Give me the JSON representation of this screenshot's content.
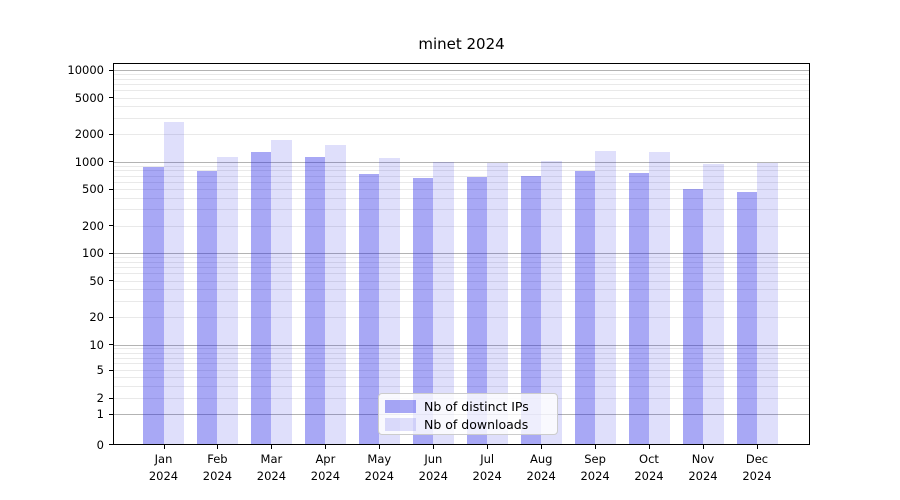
{
  "title": "minet 2024",
  "chart_data": {
    "type": "bar",
    "title": "minet 2024",
    "categories": [
      "Jan",
      "Feb",
      "Mar",
      "Apr",
      "May",
      "Jun",
      "Jul",
      "Aug",
      "Sep",
      "Oct",
      "Nov",
      "Dec"
    ],
    "x_year_label": "2024",
    "series": [
      {
        "name": "Nb of distinct IPs",
        "color": "rgba(25,25,230,0.38)",
        "values": [
          870,
          780,
          1260,
          1130,
          730,
          665,
          670,
          700,
          780,
          750,
          500,
          465
        ]
      },
      {
        "name": "Nb of downloads",
        "color": "rgba(25,25,230,0.14)",
        "values": [
          2700,
          1130,
          1730,
          1530,
          1100,
          980,
          975,
          1020,
          1290,
          1260,
          950,
          970
        ]
      }
    ],
    "yticks": [
      {
        "label": "10000",
        "value": 10000
      },
      {
        "label": "5000",
        "value": 5000
      },
      {
        "label": "2000",
        "value": 2000
      },
      {
        "label": "1000",
        "value": 1000
      },
      {
        "label": "500",
        "value": 500
      },
      {
        "label": "200",
        "value": 200
      },
      {
        "label": "100",
        "value": 100
      },
      {
        "label": "50",
        "value": 50
      },
      {
        "label": "20",
        "value": 20
      },
      {
        "label": "10",
        "value": 10
      },
      {
        "label": "5",
        "value": 5
      },
      {
        "label": "2",
        "value": 2
      },
      {
        "label": "1",
        "value": 1
      },
      {
        "label": "0",
        "value": 0
      }
    ],
    "axis": {
      "yscale": "symlog",
      "ylim": [
        0,
        12000
      ],
      "grid": true,
      "major_grid_color": "#b3b3b3",
      "minor_grid_color": "#e9e9e9"
    },
    "legend": {
      "position": "lower-center",
      "entries": [
        "Nb of distinct IPs",
        "Nb of downloads"
      ]
    }
  }
}
